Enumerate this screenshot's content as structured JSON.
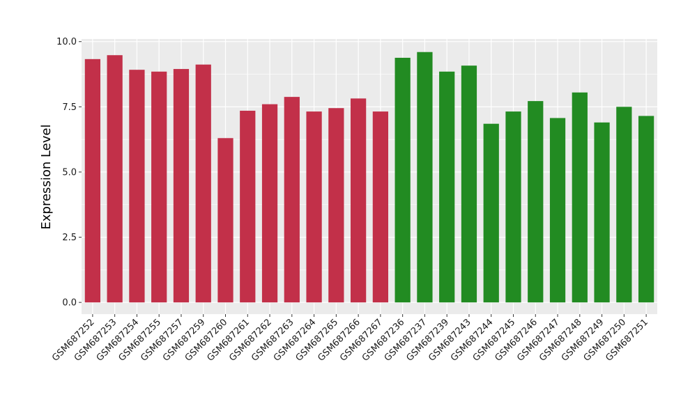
{
  "chart_data": {
    "type": "bar",
    "title": "",
    "xlabel": "",
    "ylabel": "Expression Level",
    "ylim": [
      -0.45,
      10.1
    ],
    "yticks": [
      "0.0",
      "2.5",
      "5.0",
      "7.5",
      "10.0"
    ],
    "ytick_values": [
      0,
      2.5,
      5,
      7.5,
      10
    ],
    "grid": true,
    "legend": "none",
    "panel_color": "#ebebeb",
    "grid_color": "#ffffff",
    "categories": [
      "GSM687252",
      "GSM687253",
      "GSM687254",
      "GSM687255",
      "GSM687257",
      "GSM687259",
      "GSM687260",
      "GSM687261",
      "GSM687262",
      "GSM687263",
      "GSM687264",
      "GSM687265",
      "GSM687266",
      "GSM687267",
      "GSM687236",
      "GSM687237",
      "GSM687239",
      "GSM687243",
      "GSM687244",
      "GSM687245",
      "GSM687246",
      "GSM687247",
      "GSM687248",
      "GSM687249",
      "GSM687250",
      "GSM687251"
    ],
    "values": [
      9.33,
      9.48,
      8.92,
      8.85,
      8.95,
      9.12,
      6.3,
      7.35,
      7.6,
      7.88,
      7.32,
      7.45,
      7.82,
      7.32,
      9.38,
      9.6,
      8.85,
      9.08,
      6.85,
      7.32,
      7.72,
      7.07,
      8.05,
      6.9,
      7.5,
      7.15
    ],
    "colors": [
      "#c23049",
      "#c23049",
      "#c23049",
      "#c23049",
      "#c23049",
      "#c23049",
      "#c23049",
      "#c23049",
      "#c23049",
      "#c23049",
      "#c23049",
      "#c23049",
      "#c23049",
      "#c23049",
      "#228b22",
      "#228b22",
      "#228b22",
      "#228b22",
      "#228b22",
      "#228b22",
      "#228b22",
      "#228b22",
      "#228b22",
      "#228b22",
      "#228b22",
      "#228b22"
    ]
  }
}
